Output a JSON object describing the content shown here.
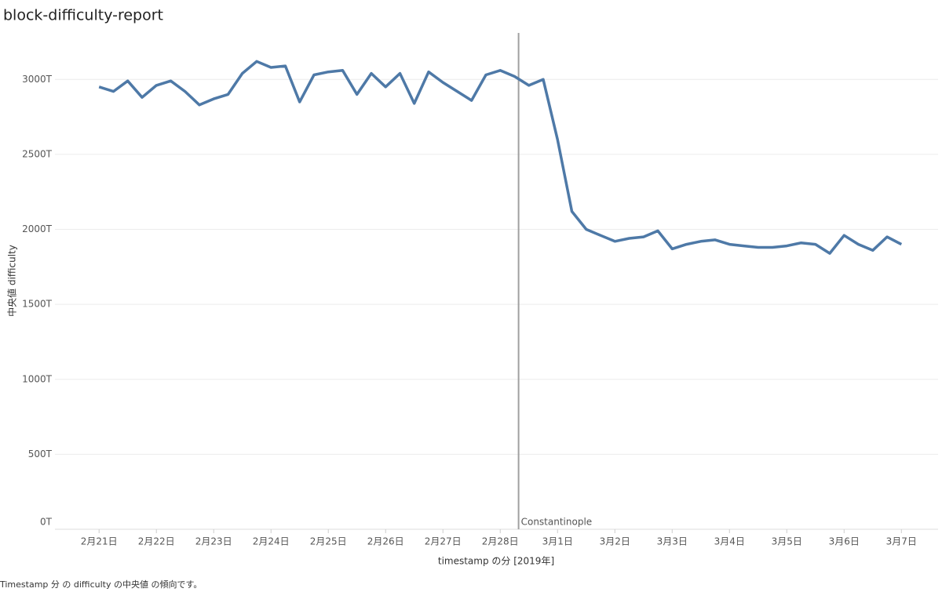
{
  "chart_data": {
    "type": "line",
    "title": "block-difficulty-report",
    "y_label": "中央値 difficulty",
    "x_label": "timestamp の分 [2019年]",
    "caption": "Timestamp 分 の difficulty の中央値 の傾向です。",
    "x": [
      0,
      0.25,
      0.5,
      0.75,
      1,
      1.25,
      1.5,
      1.75,
      2,
      2.25,
      2.5,
      2.75,
      3,
      3.25,
      3.5,
      3.75,
      4,
      4.25,
      4.5,
      4.75,
      5,
      5.25,
      5.5,
      5.75,
      6,
      6.25,
      6.5,
      6.75,
      7,
      7.25,
      7.5,
      7.75,
      8,
      8.25,
      8.5,
      8.75,
      9,
      9.25,
      9.5,
      9.75,
      10,
      10.25,
      10.5,
      10.75,
      11,
      11.25,
      11.5,
      11.75,
      12,
      12.25,
      12.5,
      12.75,
      13,
      13.25,
      13.5,
      13.75,
      14
    ],
    "series": [
      {
        "name": "difficulty",
        "color": "#4e79a7",
        "values": [
          2950,
          2920,
          2990,
          2880,
          2960,
          2990,
          2920,
          2830,
          2870,
          2900,
          3040,
          3120,
          3080,
          3090,
          2850,
          3030,
          3050,
          3060,
          2900,
          3040,
          2950,
          3040,
          2840,
          3050,
          2980,
          2920,
          2860,
          3030,
          3060,
          3020,
          2960,
          3000,
          2600,
          2120,
          2000,
          1960,
          1920,
          1940,
          1950,
          1990,
          1870,
          1900,
          1920,
          1930,
          1900,
          1890,
          1880,
          1880,
          1890,
          1910,
          1900,
          1840,
          1960,
          1900,
          1860,
          1950,
          1900
        ]
      }
    ],
    "xlim": [
      -0.77,
      14.64
    ],
    "xticks": [
      {
        "value": 0,
        "label": "2月21日"
      },
      {
        "value": 1,
        "label": "2月22日"
      },
      {
        "value": 2,
        "label": "2月23日"
      },
      {
        "value": 3,
        "label": "2月24日"
      },
      {
        "value": 4,
        "label": "2月25日"
      },
      {
        "value": 5,
        "label": "2月26日"
      },
      {
        "value": 6,
        "label": "2月27日"
      },
      {
        "value": 7,
        "label": "2月28日"
      },
      {
        "value": 8,
        "label": "3月1日"
      },
      {
        "value": 9,
        "label": "3月2日"
      },
      {
        "value": 10,
        "label": "3月3日"
      },
      {
        "value": 11,
        "label": "3月4日"
      },
      {
        "value": 12,
        "label": "3月5日"
      },
      {
        "value": 13,
        "label": "3月6日"
      },
      {
        "value": 14,
        "label": "3月7日"
      }
    ],
    "ylim": [
      0,
      3310
    ],
    "yticks": [
      {
        "value": 0,
        "label": "0T"
      },
      {
        "value": 500,
        "label": "500T"
      },
      {
        "value": 1000,
        "label": "1000T"
      },
      {
        "value": 1500,
        "label": "1500T"
      },
      {
        "value": 2000,
        "label": "2000T"
      },
      {
        "value": 2500,
        "label": "2500T"
      },
      {
        "value": 3000,
        "label": "3000T"
      }
    ],
    "grid": true,
    "annotations": [
      {
        "x": 7.32,
        "label": "Constantinople",
        "color": "#a0a0a0"
      }
    ]
  }
}
